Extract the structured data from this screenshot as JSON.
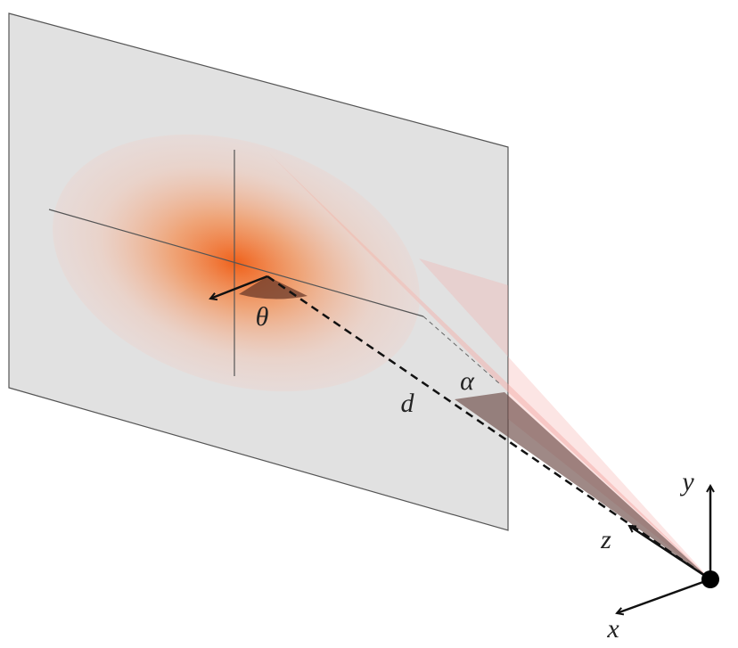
{
  "labels": {
    "theta": "θ",
    "distance": "d",
    "alpha": "α",
    "y_axis": "y",
    "z_axis": "z",
    "x_axis": "x"
  }
}
